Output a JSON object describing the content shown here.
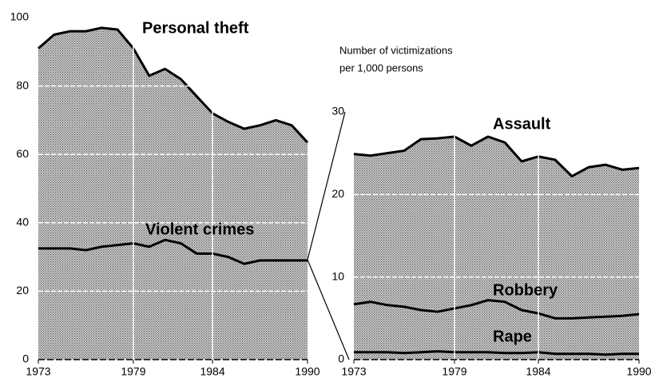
{
  "chart_data": [
    {
      "type": "area",
      "x": [
        1973,
        1974,
        1975,
        1976,
        1977,
        1978,
        1979,
        1980,
        1981,
        1982,
        1983,
        1984,
        1985,
        1986,
        1987,
        1988,
        1989,
        1990
      ],
      "xlim": [
        1973,
        1990
      ],
      "xticks": [
        1973,
        1979,
        1984,
        1990
      ],
      "ylim": [
        0,
        100
      ],
      "yticks": [
        0,
        20,
        40,
        60,
        80,
        100
      ],
      "grid": true,
      "series": [
        {
          "name": "Personal theft",
          "color": "#000000",
          "values": [
            91,
            95,
            96,
            96,
            97,
            96.5,
            91,
            83,
            85,
            82,
            77,
            72,
            69.5,
            67.5,
            68.5,
            70,
            68.5,
            63.5
          ]
        },
        {
          "name": "Violent crimes",
          "color": "#000000",
          "values": [
            32.5,
            32.5,
            32.5,
            32,
            33,
            33.5,
            34,
            33,
            35,
            34,
            31,
            31,
            30,
            28,
            29,
            29,
            29,
            29
          ]
        }
      ]
    },
    {
      "type": "area",
      "annotation": [
        "Number of victimizations",
        "per 1,000 persons"
      ],
      "x": [
        1973,
        1974,
        1975,
        1976,
        1977,
        1978,
        1979,
        1980,
        1981,
        1982,
        1983,
        1984,
        1985,
        1986,
        1987,
        1988,
        1989,
        1990
      ],
      "xlim": [
        1973,
        1990
      ],
      "xticks": [
        1973,
        1979,
        1984,
        1990
      ],
      "ylim": [
        0,
        30
      ],
      "yticks": [
        0,
        10,
        20,
        30
      ],
      "grid": true,
      "series": [
        {
          "name": "Assault",
          "color": "#000000",
          "values": [
            24.9,
            24.7,
            25,
            25.3,
            26.7,
            26.8,
            27,
            25.9,
            27,
            26.3,
            24,
            24.6,
            24.2,
            22.2,
            23.3,
            23.6,
            23,
            23.2
          ]
        },
        {
          "name": "Robbery",
          "color": "#000000",
          "values": [
            6.7,
            7,
            6.6,
            6.4,
            6,
            5.8,
            6.2,
            6.6,
            7.2,
            7,
            6,
            5.6,
            5,
            5,
            5.1,
            5.2,
            5.3,
            5.5
          ]
        },
        {
          "name": "Rape",
          "color": "#000000",
          "values": [
            0.9,
            0.9,
            0.9,
            0.8,
            0.9,
            1,
            0.9,
            0.9,
            0.9,
            0.8,
            0.8,
            0.9,
            0.7,
            0.7,
            0.7,
            0.6,
            0.7,
            0.7
          ]
        }
      ]
    }
  ]
}
